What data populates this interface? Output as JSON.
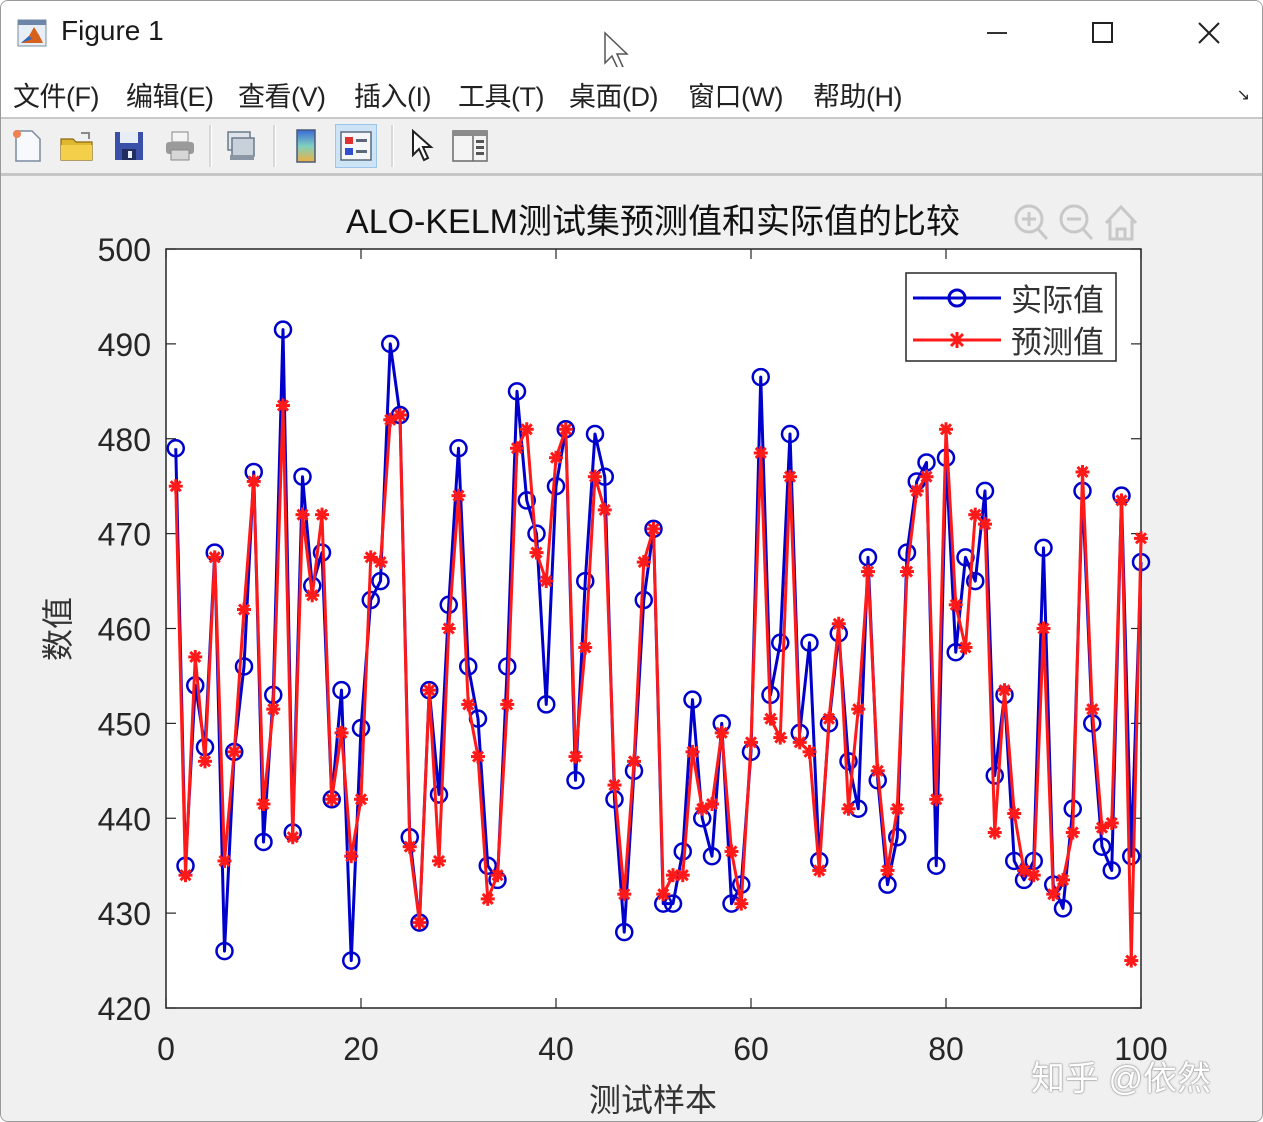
{
  "window": {
    "title": "Figure 1",
    "controls": {
      "minimize": "—",
      "maximize": "☐",
      "close": "✕"
    }
  },
  "menubar": {
    "items": [
      {
        "label": "文件(F)"
      },
      {
        "label": "编辑(E)"
      },
      {
        "label": "查看(V)"
      },
      {
        "label": "插入(I)"
      },
      {
        "label": "工具(T)"
      },
      {
        "label": "桌面(D)"
      },
      {
        "label": "窗口(W)"
      },
      {
        "label": "帮助(H)"
      }
    ],
    "dock_icon": "dock-arrow-icon"
  },
  "toolbar": {
    "buttons": [
      {
        "icon": "new-figure-icon"
      },
      {
        "icon": "open-folder-icon"
      },
      {
        "icon": "save-icon"
      },
      {
        "icon": "print-icon"
      },
      {
        "icon": "link-plot-icon"
      },
      {
        "icon": "insert-colorbar-icon"
      },
      {
        "icon": "insert-legend-icon",
        "active": true
      },
      {
        "icon": "edit-plot-cursor-icon"
      },
      {
        "icon": "open-property-inspector-icon"
      }
    ]
  },
  "axes_toolbar": [
    "zoom-in-icon",
    "zoom-out-icon",
    "home-icon"
  ],
  "watermark": "知乎 @依然",
  "colors": {
    "actual": "#0000cc",
    "predicted": "#ff1a1a",
    "axes_bg": "#ffffff",
    "figure_bg": "#f0f0f0"
  },
  "chart_data": {
    "type": "line",
    "title": "ALO-KELM测试集预测值和实际值的比较",
    "xlabel": "测试样本",
    "ylabel": "数值",
    "xlim": [
      0,
      100
    ],
    "ylim": [
      420,
      500
    ],
    "xticks": [
      0,
      20,
      40,
      60,
      80,
      100
    ],
    "yticks": [
      420,
      430,
      440,
      450,
      460,
      470,
      480,
      490,
      500
    ],
    "grid": false,
    "legend_position": "northeast",
    "x": [
      1,
      2,
      3,
      4,
      5,
      6,
      7,
      8,
      9,
      10,
      11,
      12,
      13,
      14,
      15,
      16,
      17,
      18,
      19,
      20,
      21,
      22,
      23,
      24,
      25,
      26,
      27,
      28,
      29,
      30,
      31,
      32,
      33,
      34,
      35,
      36,
      37,
      38,
      39,
      40,
      41,
      42,
      43,
      44,
      45,
      46,
      47,
      48,
      49,
      50,
      51,
      52,
      53,
      54,
      55,
      56,
      57,
      58,
      59,
      60,
      61,
      62,
      63,
      64,
      65,
      66,
      67,
      68,
      69,
      70,
      71,
      72,
      73,
      74,
      75,
      76,
      77,
      78,
      79,
      80,
      81,
      82,
      83,
      84,
      85,
      86,
      87,
      88,
      89,
      90,
      91,
      92,
      93,
      94,
      95,
      96,
      97,
      98,
      99,
      100
    ],
    "series": [
      {
        "name": "实际值",
        "color": "#0000cc",
        "marker": "o",
        "values": [
          479,
          435,
          454,
          447.5,
          468,
          426,
          447,
          456,
          476.5,
          437.5,
          453,
          491.5,
          438.5,
          476,
          464.5,
          468,
          442,
          453.5,
          425,
          449.5,
          463,
          465,
          490,
          482.5,
          438,
          429,
          453.5,
          442.5,
          462.5,
          479,
          456,
          450.5,
          435,
          433.5,
          456,
          485,
          473.5,
          470,
          452,
          475,
          481,
          444,
          465,
          480.5,
          476,
          442,
          428,
          445,
          463,
          470.5,
          431,
          431,
          436.5,
          452.5,
          440,
          436,
          450,
          431,
          433,
          447,
          486.5,
          453,
          458.5,
          480.5,
          449,
          458.5,
          435.5,
          450,
          459.5,
          446,
          441,
          467.5,
          444,
          433,
          438,
          468,
          475.5,
          477.5,
          435,
          478,
          457.5,
          467.5,
          465,
          474.5,
          444.5,
          453,
          435.5,
          433.5,
          435.5,
          468.5,
          433,
          430.5,
          441,
          474.5,
          450,
          437,
          434.5,
          474,
          436,
          467
        ]
      },
      {
        "name": "预测值",
        "color": "#ff1a1a",
        "marker": "*",
        "values": [
          475,
          434,
          457,
          446,
          467.5,
          435.5,
          447,
          462,
          475.5,
          441.5,
          451.5,
          483.5,
          438,
          472,
          463.5,
          472,
          442,
          449,
          436,
          442,
          467.5,
          467,
          482,
          482.5,
          437,
          429,
          453.5,
          435.5,
          460,
          474,
          452,
          446.5,
          431.5,
          434,
          452,
          479,
          481,
          468,
          465,
          478,
          481,
          446.5,
          458,
          476,
          472.5,
          443.5,
          432,
          446,
          467,
          470.5,
          432,
          434,
          434,
          447,
          441,
          441.5,
          449,
          436.5,
          431,
          448,
          478.5,
          450.5,
          448.5,
          476,
          448,
          447,
          434.5,
          450.5,
          460.5,
          441,
          451.5,
          466,
          445,
          434.5,
          441,
          466,
          474.5,
          476,
          442,
          481,
          462.5,
          458,
          472,
          471,
          438.5,
          453.5,
          440.5,
          434.5,
          434,
          460,
          432,
          433.5,
          438.5,
          476.5,
          451.5,
          439,
          439.5,
          473.5,
          425,
          469.5
        ]
      }
    ]
  }
}
